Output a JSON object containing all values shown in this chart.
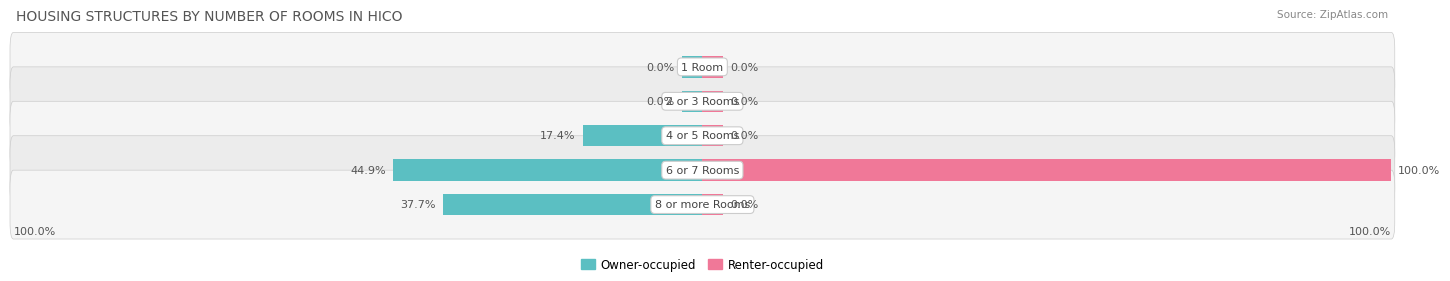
{
  "title": "HOUSING STRUCTURES BY NUMBER OF ROOMS IN HICO",
  "source": "Source: ZipAtlas.com",
  "categories": [
    "1 Room",
    "2 or 3 Rooms",
    "4 or 5 Rooms",
    "6 or 7 Rooms",
    "8 or more Rooms"
  ],
  "owner_pct": [
    0.0,
    0.0,
    17.4,
    44.9,
    37.7
  ],
  "renter_pct": [
    0.0,
    0.0,
    0.0,
    100.0,
    0.0
  ],
  "owner_color": "#5bbfc2",
  "renter_color": "#f07898",
  "row_bg_even": "#f5f5f5",
  "row_bg_odd": "#ececec",
  "axis_label_left": "100.0%",
  "axis_label_right": "100.0%",
  "max_val": 100.0,
  "stub_size": 3.0,
  "title_fontsize": 10,
  "source_fontsize": 7.5,
  "bar_label_fontsize": 8,
  "cat_label_fontsize": 8,
  "legend_fontsize": 8.5
}
